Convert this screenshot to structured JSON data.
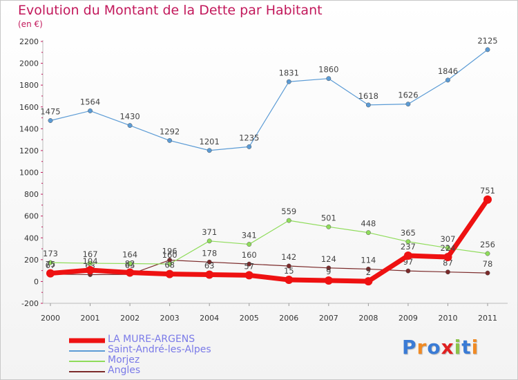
{
  "title": "Evolution du Montant de la Dette par Habitant",
  "subtitle": "(en €)",
  "logo": {
    "text": "Proxiti",
    "letters": [
      "P",
      "r",
      "o",
      "x",
      "i",
      "t",
      "i"
    ],
    "colors": [
      "#3a7bd5",
      "#f08a24",
      "#3a7bd5",
      "#e02020",
      "#8bc34a",
      "#3a7bd5",
      "#f08a24"
    ]
  },
  "chart_data": {
    "type": "line",
    "categories": [
      "2000",
      "2001",
      "2002",
      "2003",
      "2004",
      "2005",
      "2006",
      "2007",
      "2008",
      "2009",
      "2010",
      "2011"
    ],
    "ylim": [
      -200,
      2200
    ],
    "yticks": [
      -200,
      0,
      200,
      400,
      600,
      800,
      1000,
      1200,
      1400,
      1600,
      1800,
      2000,
      2200
    ],
    "grid": false,
    "legend_position": "bottom-left",
    "series": [
      {
        "name": "Angles",
        "color": "#7b2a2a",
        "width": 1.2,
        "values": [
          67,
          63,
          65,
          196,
          178,
          160,
          142,
          124,
          114,
          97,
          87,
          78
        ],
        "labels": [
          "67",
          "63",
          "65",
          "196",
          "178",
          "160",
          "142",
          "124",
          "114",
          "97",
          "87",
          "78"
        ]
      },
      {
        "name": "Morjez",
        "color": "#8fdc5a",
        "width": 1.2,
        "values": [
          173,
          167,
          164,
          160,
          371,
          341,
          559,
          501,
          448,
          365,
          307,
          256
        ],
        "labels": [
          "173",
          "167",
          "164",
          "160",
          "371",
          "341",
          "559",
          "501",
          "448",
          "365",
          "307",
          "256"
        ]
      },
      {
        "name": "Saint-André-les-Alpes",
        "color": "#5b9bd5",
        "width": 1.2,
        "values": [
          1475,
          1564,
          1430,
          1292,
          1201,
          1235,
          1831,
          1860,
          1618,
          1626,
          1846,
          2125
        ],
        "labels": [
          "1475",
          "1564",
          "1430",
          "1292",
          "1201",
          "1235",
          "1831",
          "1860",
          "1618",
          "1626",
          "1846",
          "2125"
        ]
      },
      {
        "name": "LA MURE-ARGENS",
        "color": "#ee1111",
        "width": 7,
        "values": [
          75,
          104,
          82,
          68,
          63,
          57,
          15,
          9,
          2,
          237,
          224,
          751
        ],
        "labels": [
          "75",
          "104",
          "82",
          "68",
          "63",
          "57",
          "15",
          "9",
          "2",
          "237",
          "224",
          "751"
        ]
      }
    ],
    "legend_order": [
      "LA MURE-ARGENS",
      "Saint-André-les-Alpes",
      "Morjez",
      "Angles"
    ]
  }
}
